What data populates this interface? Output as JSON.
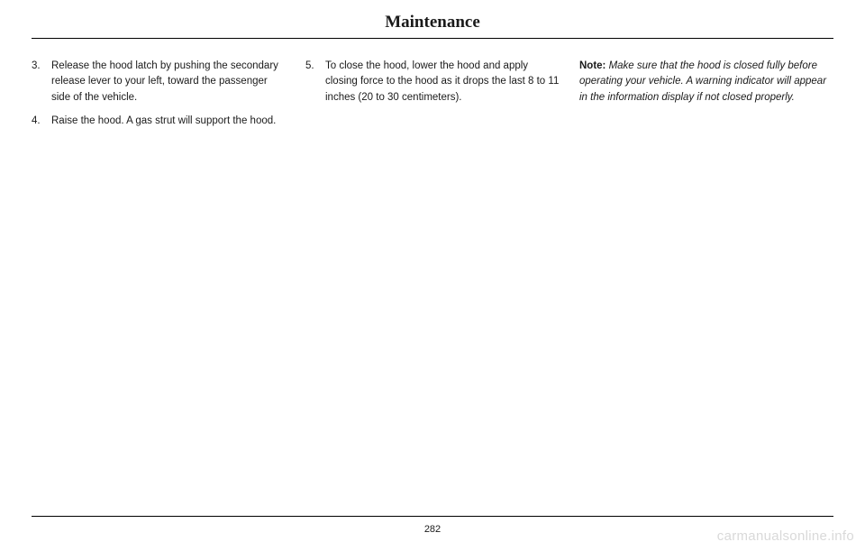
{
  "header": {
    "title": "Maintenance"
  },
  "columns": {
    "col1": {
      "items": [
        {
          "num": "3.",
          "text": "Release the hood latch by pushing the secondary release lever to your left, toward the passenger side of the vehicle."
        },
        {
          "num": "4.",
          "text": "Raise the hood. A gas strut will support the hood."
        }
      ]
    },
    "col2": {
      "items": [
        {
          "num": "5.",
          "text": "To close the hood, lower the hood and apply closing force to the hood as it drops the last 8 to 11 inches (20 to 30 centimeters)."
        }
      ]
    },
    "col3": {
      "note_label": "Note:",
      "note_text": " Make sure that the hood is closed fully before operating your vehicle. A warning indicator will appear in the information display if not closed properly."
    }
  },
  "footer": {
    "page_number": "282",
    "watermark": "carmanualsonline.info"
  }
}
